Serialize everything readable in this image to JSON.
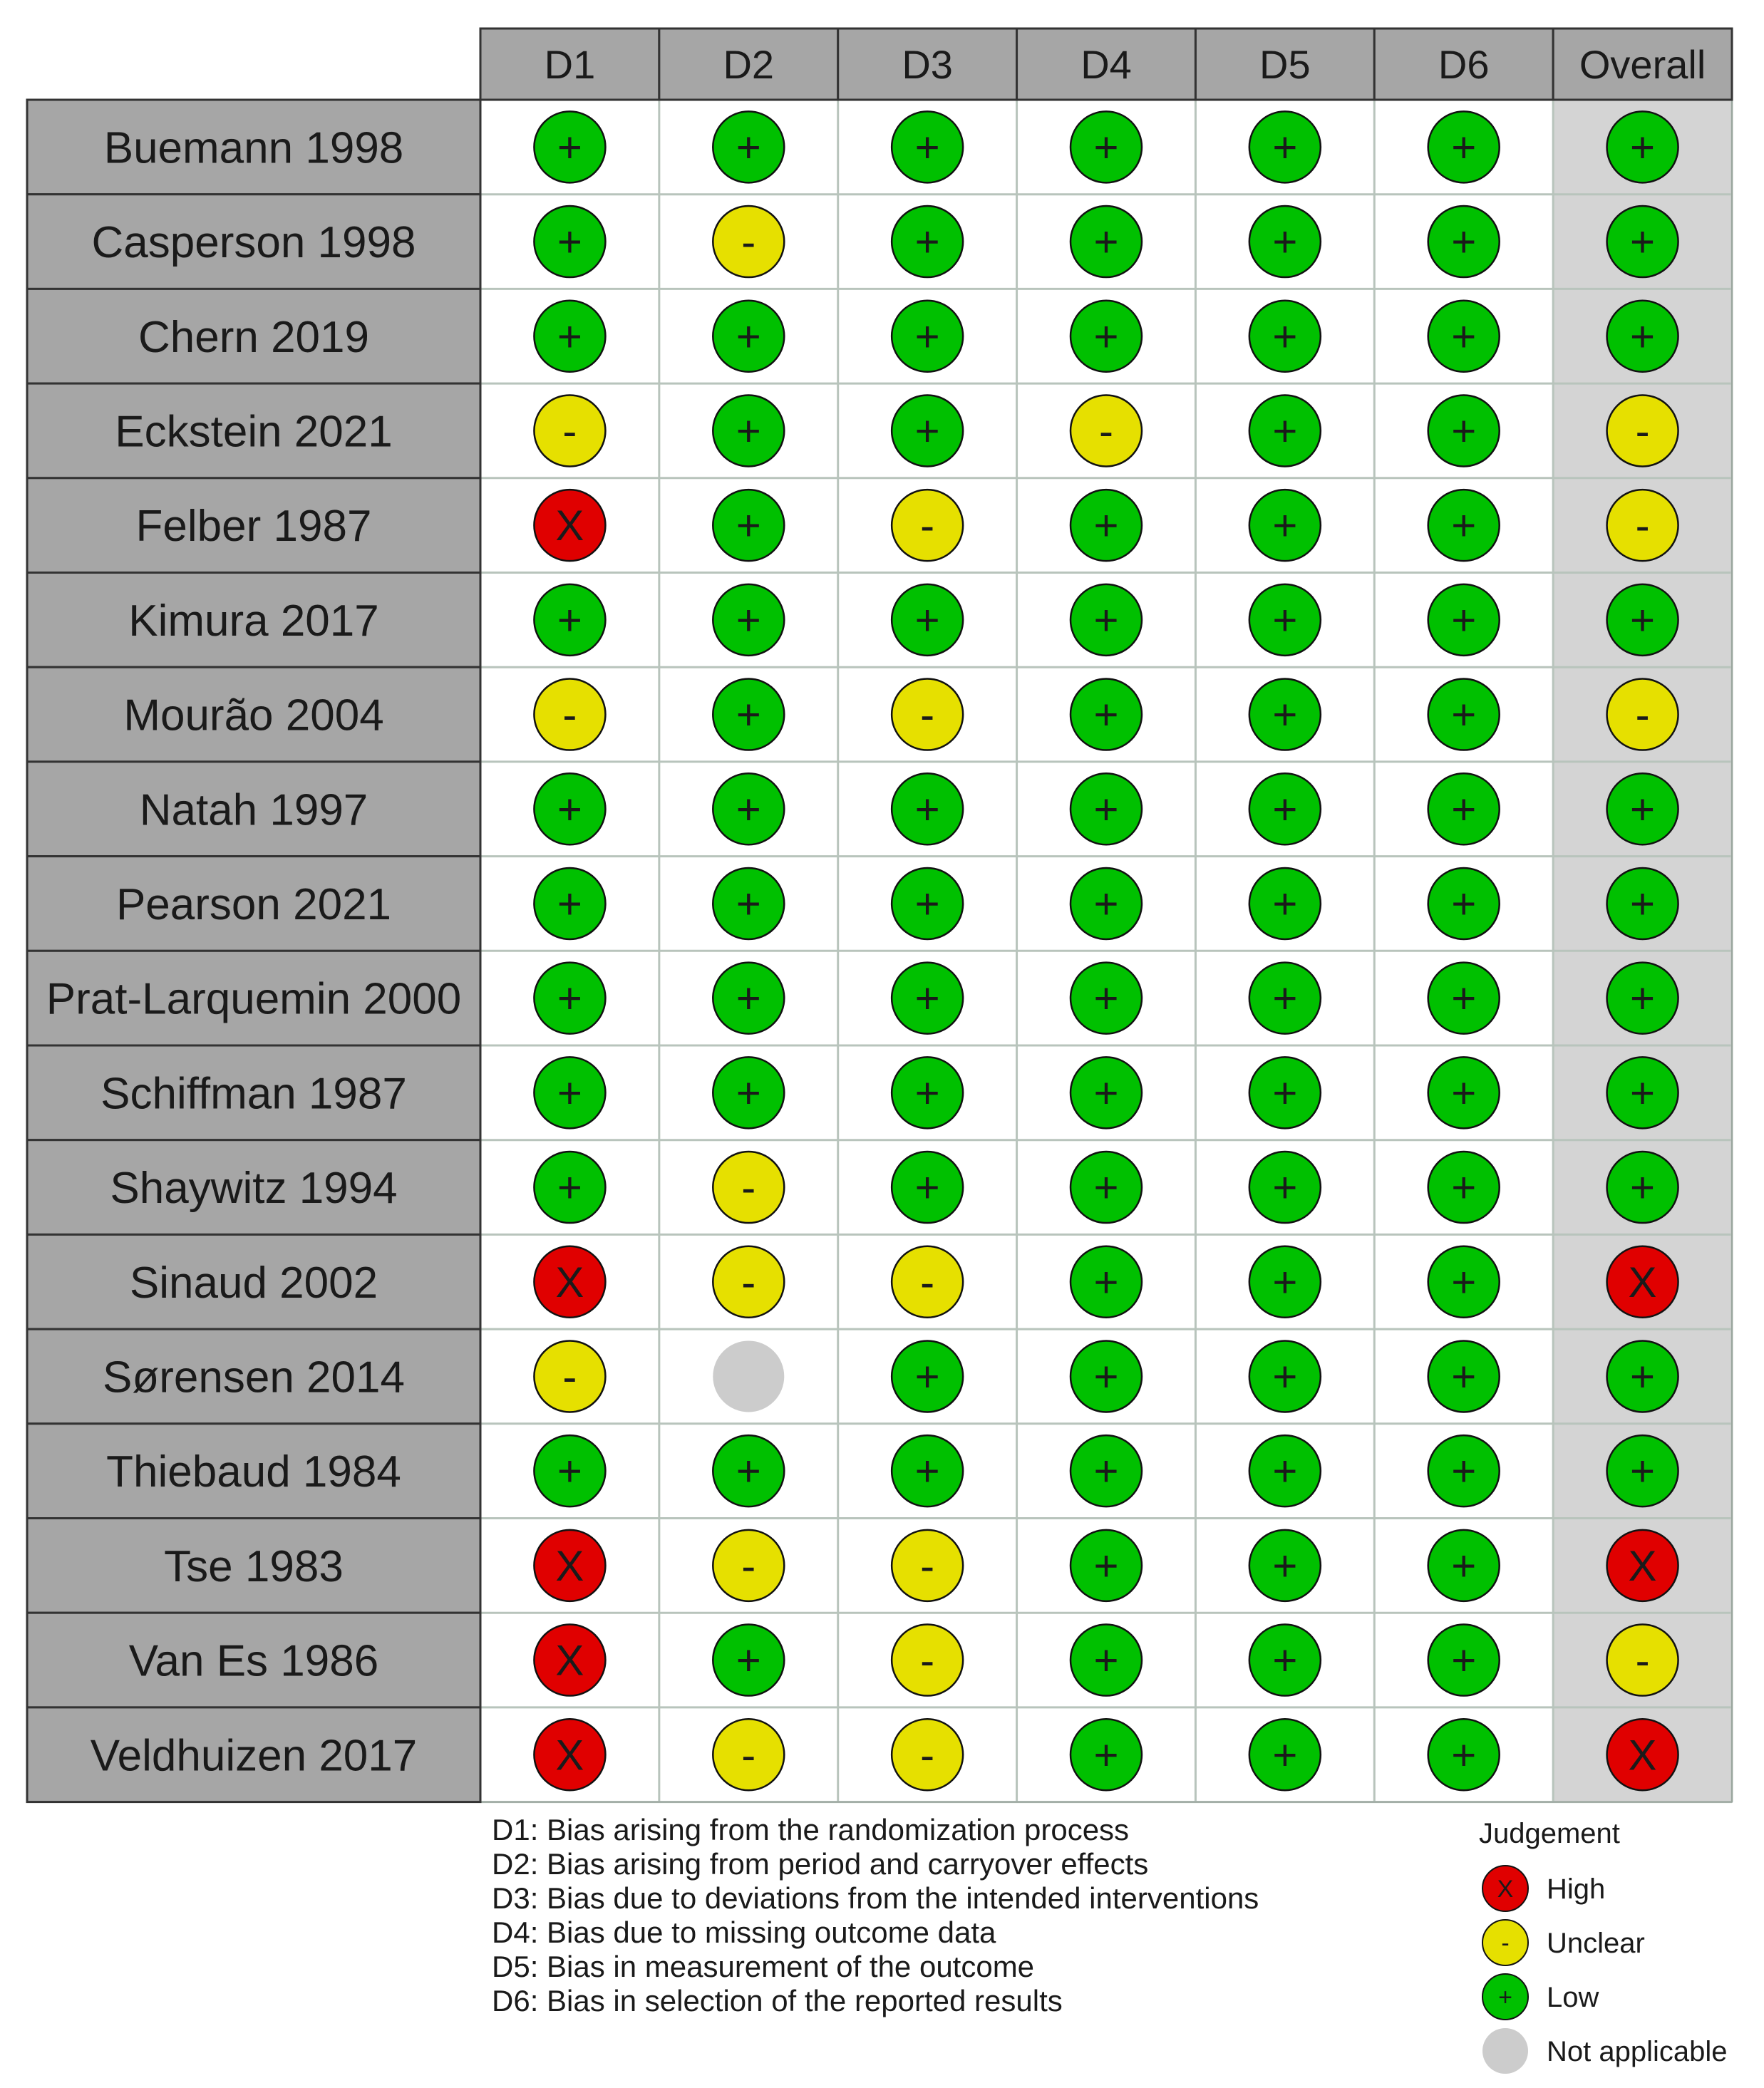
{
  "chart_data": {
    "type": "table",
    "columns": [
      "D1",
      "D2",
      "D3",
      "D4",
      "D5",
      "D6",
      "Overall"
    ],
    "rows": [
      {
        "study": "Buemann 1998",
        "judgements": [
          "low",
          "low",
          "low",
          "low",
          "low",
          "low",
          "low"
        ]
      },
      {
        "study": "Casperson 1998",
        "judgements": [
          "low",
          "unclear",
          "low",
          "low",
          "low",
          "low",
          "low"
        ]
      },
      {
        "study": "Chern 2019",
        "judgements": [
          "low",
          "low",
          "low",
          "low",
          "low",
          "low",
          "low"
        ]
      },
      {
        "study": "Eckstein 2021",
        "judgements": [
          "unclear",
          "low",
          "low",
          "unclear",
          "low",
          "low",
          "unclear"
        ]
      },
      {
        "study": "Felber 1987",
        "judgements": [
          "high",
          "low",
          "unclear",
          "low",
          "low",
          "low",
          "unclear"
        ]
      },
      {
        "study": "Kimura 2017",
        "judgements": [
          "low",
          "low",
          "low",
          "low",
          "low",
          "low",
          "low"
        ]
      },
      {
        "study": "Mourão 2004",
        "judgements": [
          "unclear",
          "low",
          "unclear",
          "low",
          "low",
          "low",
          "unclear"
        ]
      },
      {
        "study": "Natah 1997",
        "judgements": [
          "low",
          "low",
          "low",
          "low",
          "low",
          "low",
          "low"
        ]
      },
      {
        "study": "Pearson 2021",
        "judgements": [
          "low",
          "low",
          "low",
          "low",
          "low",
          "low",
          "low"
        ]
      },
      {
        "study": "Prat-Larquemin 2000",
        "judgements": [
          "low",
          "low",
          "low",
          "low",
          "low",
          "low",
          "low"
        ]
      },
      {
        "study": "Schiffman 1987",
        "judgements": [
          "low",
          "low",
          "low",
          "low",
          "low",
          "low",
          "low"
        ]
      },
      {
        "study": "Shaywitz 1994",
        "judgements": [
          "low",
          "unclear",
          "low",
          "low",
          "low",
          "low",
          "low"
        ]
      },
      {
        "study": "Sinaud 2002",
        "judgements": [
          "high",
          "unclear",
          "unclear",
          "low",
          "low",
          "low",
          "high"
        ]
      },
      {
        "study": "Sørensen 2014",
        "judgements": [
          "unclear",
          "na",
          "low",
          "low",
          "low",
          "low",
          "low"
        ]
      },
      {
        "study": "Thiebaud 1984",
        "judgements": [
          "low",
          "low",
          "low",
          "low",
          "low",
          "low",
          "low"
        ]
      },
      {
        "study": "Tse 1983",
        "judgements": [
          "high",
          "unclear",
          "unclear",
          "low",
          "low",
          "low",
          "high"
        ]
      },
      {
        "study": "Van Es 1986",
        "judgements": [
          "high",
          "low",
          "unclear",
          "low",
          "low",
          "low",
          "unclear"
        ]
      },
      {
        "study": "Veldhuizen 2017",
        "judgements": [
          "high",
          "unclear",
          "unclear",
          "low",
          "low",
          "low",
          "high"
        ]
      }
    ],
    "domain_definitions": [
      "D1: Bias arising from the randomization process",
      "D2: Bias arising from period and carryover effects",
      "D3: Bias due to deviations from the intended interventions",
      "D4: Bias due to missing outcome data",
      "D5: Bias in measurement of the outcome",
      "D6: Bias in selection of the reported results"
    ],
    "legend": {
      "title": "Judgement",
      "items": [
        {
          "key": "high",
          "label": "High",
          "symbol": "X",
          "color": "#e00000"
        },
        {
          "key": "unclear",
          "label": "Unclear",
          "symbol": "-",
          "color": "#e6e000"
        },
        {
          "key": "low",
          "label": "Low",
          "symbol": "+",
          "color": "#00c000"
        },
        {
          "key": "na",
          "label": "Not applicable",
          "symbol": "",
          "color": "#cccccc"
        }
      ]
    },
    "colors": {
      "header_fill": "#a6a6a6",
      "study_fill": "#a6a6a6",
      "overall_fill": "#d4d4d4",
      "cell_fill": "#ffffff",
      "grid": "#b8c4bc"
    }
  }
}
